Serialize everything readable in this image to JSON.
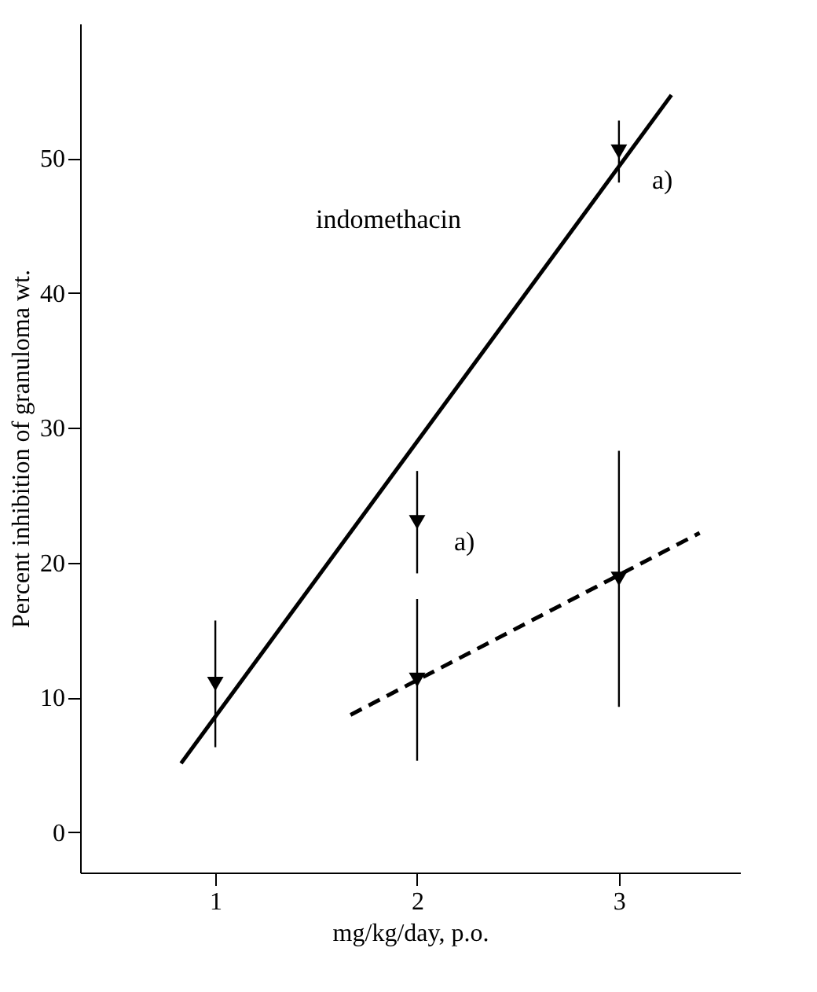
{
  "chart_data": {
    "type": "scatter",
    "xlabel": "mg/kg/day, p.o.",
    "ylabel": "Percent inhibition of granuloma wt.",
    "xlim": [
      0.33,
      3.6
    ],
    "xticks": [
      1,
      2,
      3
    ],
    "ylim": [
      -3,
      60
    ],
    "yticks": [
      0,
      10,
      20,
      30,
      40,
      50
    ],
    "grid": false,
    "series": [
      {
        "color": "#000000",
        "marker": "triangle",
        "x": [
          1,
          2,
          3
        ],
        "values": [
          11,
          23,
          50.5
        ],
        "errors": [
          4.7,
          3.8,
          2.3
        ]
      },
      {
        "color": "#000000",
        "marker": "triangle",
        "x": [
          2,
          3
        ],
        "values": [
          11.3,
          18.8
        ],
        "errors": [
          6,
          9.5
        ]
      },
      {
        "type": "line",
        "color": "#000000",
        "line_style": "solid",
        "x": [
          0.83,
          3.26
        ],
        "values": [
          5.1,
          54.7
        ]
      },
      {
        "type": "line",
        "color": "#000000",
        "line_style": "dashed",
        "x": [
          1.67,
          3.4
        ],
        "values": [
          8.7,
          22.2
        ]
      }
    ],
    "annotations": [
      "indomethacin",
      "a)",
      "a)"
    ]
  }
}
